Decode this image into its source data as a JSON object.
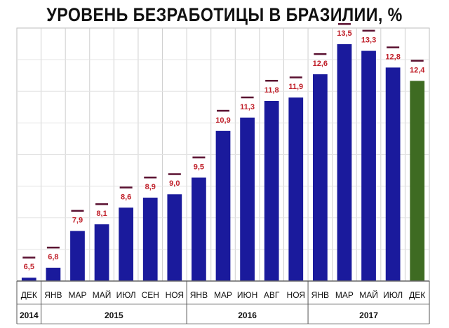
{
  "chart_data": {
    "type": "bar",
    "title": "УРОВЕНЬ БЕЗРАБОТИЦЫ В БРАЗИЛИИ, %",
    "xlabel": "",
    "ylabel": "",
    "grid": true,
    "colors": {
      "bar": "#1a1a9c",
      "highlight": "#3e6b22",
      "label": "#c0202a",
      "marker": "#5a1030",
      "grid": "#cfcfcf"
    },
    "categories": [
      "ДЕК",
      "ЯНВ",
      "МАР",
      "МАЙ",
      "ИЮЛ",
      "СЕН",
      "НОЯ",
      "ЯНВ",
      "МАР",
      "ИЮН",
      "АВГ",
      "НОЯ",
      "ЯНВ",
      "МАР",
      "МАЙ",
      "ИЮЛ",
      "ДЕК"
    ],
    "value_labels": [
      "6,5",
      "6,8",
      "7,9",
      "8,1",
      "8,6",
      "8,9",
      "9,0",
      "9,5",
      "10,9",
      "11,3",
      "11,8",
      "11,9",
      "12,6",
      "13,5",
      "13,3",
      "12,8",
      "12,4"
    ],
    "values": [
      6.5,
      6.8,
      7.9,
      8.1,
      8.6,
      8.9,
      9.0,
      9.5,
      10.9,
      11.3,
      11.8,
      11.9,
      12.6,
      13.5,
      13.3,
      12.8,
      12.4
    ],
    "highlight_index": 16,
    "ylim": [
      6.4,
      13.9
    ],
    "years": [
      {
        "label": "2014",
        "start": 0,
        "end": 0
      },
      {
        "label": "2015",
        "start": 1,
        "end": 6
      },
      {
        "label": "2016",
        "start": 7,
        "end": 11
      },
      {
        "label": "2017",
        "start": 12,
        "end": 16
      }
    ]
  }
}
